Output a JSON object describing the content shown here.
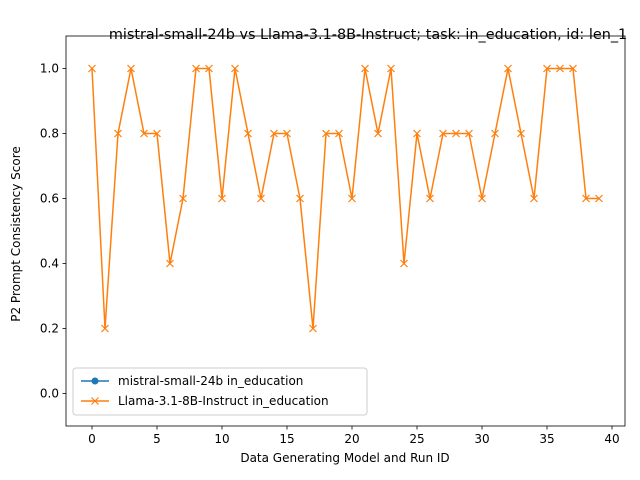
{
  "chart_data": {
    "type": "line",
    "title": "mistral-small-24b vs Llama-3.1-8B-Instruct; task: in_education, id: len_1",
    "xlabel": "Data Generating Model and Run ID",
    "ylabel": "P2 Prompt Consistency Score",
    "xlim": [
      -2,
      41
    ],
    "ylim": [
      -0.1,
      1.1
    ],
    "xticks": [
      0,
      5,
      10,
      15,
      20,
      25,
      30,
      35,
      40
    ],
    "yticks": [
      0.0,
      0.2,
      0.4,
      0.6,
      0.8,
      1.0
    ],
    "xtick_labels": [
      "0",
      "5",
      "10",
      "15",
      "20",
      "25",
      "30",
      "35",
      "40"
    ],
    "ytick_labels": [
      "0.0",
      "0.2",
      "0.4",
      "0.6",
      "0.8",
      "1.0"
    ],
    "grid": false,
    "legend_position": "lower-left",
    "series": [
      {
        "name": "mistral-small-24b in_education",
        "color": "#1f77b4",
        "marker": "circle",
        "x": [],
        "values": []
      },
      {
        "name": "Llama-3.1-8B-Instruct in_education",
        "color": "#ff7f0e",
        "marker": "x",
        "x": [
          0,
          1,
          2,
          3,
          4,
          5,
          6,
          7,
          8,
          9,
          10,
          11,
          12,
          13,
          14,
          15,
          16,
          17,
          18,
          19,
          20,
          21,
          22,
          23,
          24,
          25,
          26,
          27,
          28,
          29,
          30,
          31,
          32,
          33,
          34,
          35,
          36,
          37,
          38,
          39
        ],
        "values": [
          1.0,
          0.2,
          0.8,
          1.0,
          0.8,
          0.8,
          0.4,
          0.6,
          1.0,
          1.0,
          0.6,
          1.0,
          0.8,
          0.6,
          0.8,
          0.8,
          0.6,
          0.2,
          0.8,
          0.8,
          0.6,
          1.0,
          0.8,
          1.0,
          0.4,
          0.8,
          0.6,
          0.8,
          0.8,
          0.8,
          0.6,
          0.8,
          1.0,
          0.8,
          0.6,
          1.0,
          1.0,
          1.0,
          0.6,
          0.6
        ]
      }
    ]
  }
}
